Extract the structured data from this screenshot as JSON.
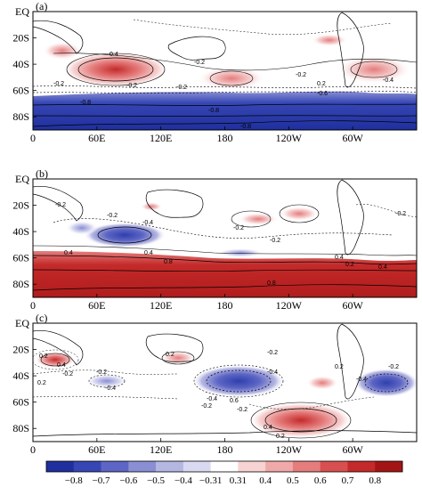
{
  "panels": [
    {
      "tag": "(a)",
      "contour_labels": [
        "0.4",
        "-0.2",
        "-0.2",
        "-0.2",
        "-0.2",
        "-0.2",
        "0.2",
        "-0.4",
        "-0.6",
        "-0.8",
        "-0.8",
        "-0.8"
      ]
    },
    {
      "tag": "(b)",
      "contour_labels": [
        "-0.2",
        "-0.2",
        "-0.4",
        "-0.2",
        "-0.2",
        "-0.2",
        "0.4",
        "0.4",
        "0.8",
        "0.4",
        "0.2",
        "0.4",
        "0.8"
      ]
    },
    {
      "tag": "(c)",
      "contour_labels": [
        "0.2",
        "0.2",
        "-0.2",
        "0.4",
        "-0.2",
        "-0.4",
        "0.2",
        "-0.4",
        "-0.2",
        "-0.2",
        "0.6",
        "-0.2",
        "0.4",
        "0.2",
        "-0.4",
        "-0.4",
        "0.2",
        "-0.2"
      ]
    }
  ],
  "lat_labels": [
    "EQ",
    "20S",
    "40S",
    "60S",
    "80S"
  ],
  "lon_labels": [
    "0",
    "60E",
    "120E",
    "180",
    "120W",
    "60W"
  ],
  "colorbar": {
    "labels": [
      "-0.8",
      "-0.7",
      "-0.6",
      "-0.5",
      "-0.4",
      "-0.31",
      "0.31",
      "0.4",
      "0.5",
      "0.6",
      "0.7",
      "0.8"
    ],
    "colors": [
      "#1f2f9e",
      "#3647b5",
      "#5d66c4",
      "#8a8fd4",
      "#b5b7e3",
      "#d9daf1",
      "#ffffff",
      "#f7d3d3",
      "#f0a9a9",
      "#e57d7d",
      "#d84f4f",
      "#c42a2a",
      "#a31515"
    ]
  }
}
